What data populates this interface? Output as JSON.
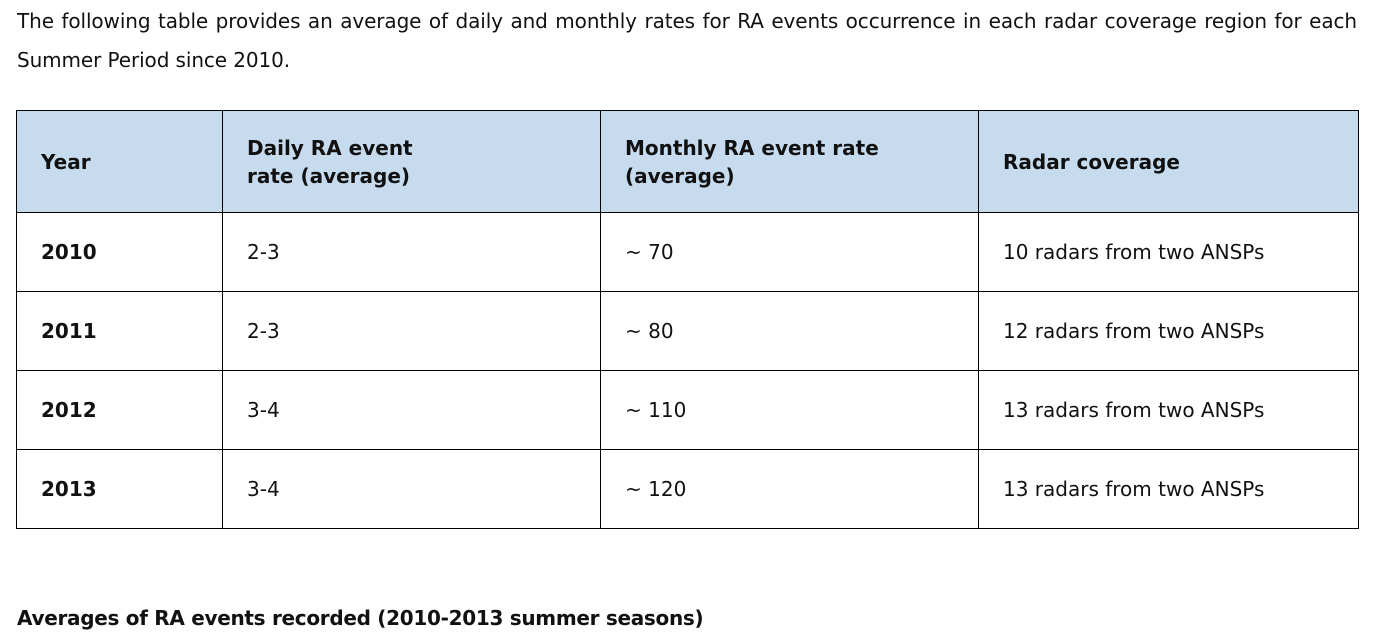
{
  "intro_text": "The following table provides an average of daily and monthly rates for RA events occurrence in each radar coverage region for each Summer Period since 2010.",
  "table": {
    "headers": [
      "Year",
      "Daily RA event rate (average)",
      "Monthly RA event rate (average)",
      "Radar coverage"
    ],
    "rows": [
      {
        "year": "2010",
        "daily": "2-3",
        "monthly": "~ 70",
        "coverage": "10 radars from two ANSPs"
      },
      {
        "year": "2011",
        "daily": "2-3",
        "monthly": "~ 80",
        "coverage": "12 radars from two ANSPs"
      },
      {
        "year": "2012",
        "daily": "3-4",
        "monthly": "~ 110",
        "coverage": "13 radars from two ANSPs"
      },
      {
        "year": "2013",
        "daily": "3-4",
        "monthly": "~ 120",
        "coverage": "13 radars from two ANSPs"
      }
    ]
  },
  "caption": "Averages of RA events recorded (2010-2013 summer seasons)",
  "colors": {
    "header_background": "#c6dbee",
    "border": "#000000"
  }
}
